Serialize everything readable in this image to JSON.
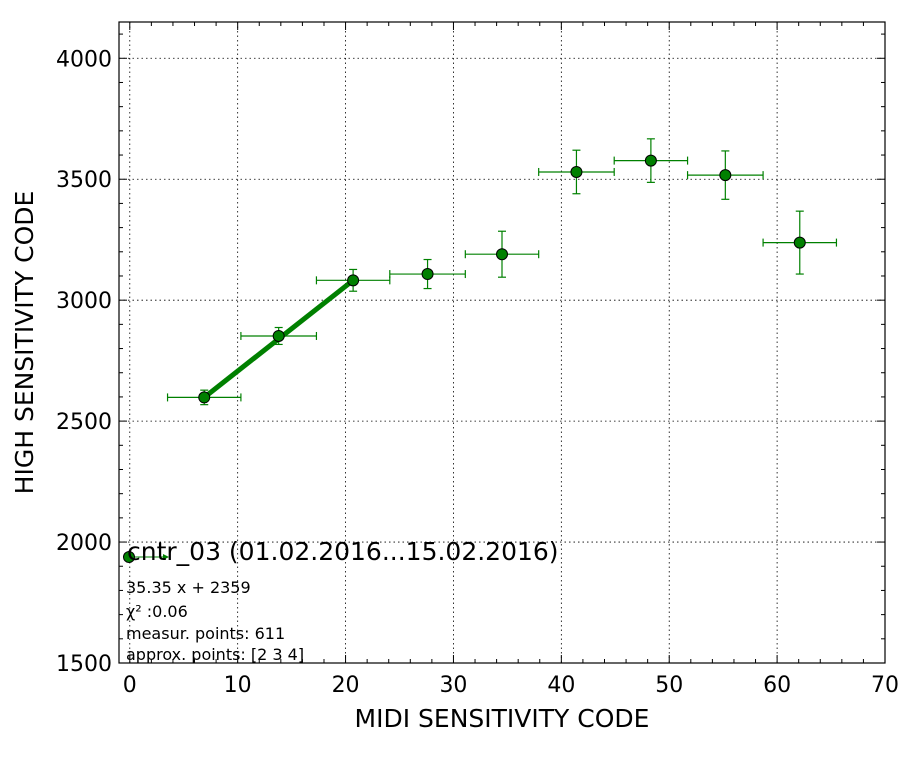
{
  "chart_data": {
    "type": "scatter",
    "xlabel": "MIDI SENSITIVITY CODE",
    "ylabel": "HIGH SENSITIVITY CODE",
    "xlim": [
      -1,
      70
    ],
    "ylim": [
      1500,
      4150
    ],
    "x_ticks": [
      0,
      10,
      20,
      30,
      40,
      50,
      60,
      70
    ],
    "y_ticks": [
      1500,
      2000,
      2500,
      3000,
      3500,
      4000
    ],
    "x_tick_labels": [
      "0",
      "10",
      "20",
      "30",
      "40",
      "50",
      "60",
      "70"
    ],
    "y_tick_labels": [
      "1500",
      "2000",
      "2500",
      "3000",
      "3500",
      "4000"
    ],
    "grid": true,
    "color": "#008000",
    "series": [
      {
        "name": "cntr_03 (01.02.2016...15.02.2016)",
        "points": [
          {
            "x": 6.9,
            "y": 2598,
            "xerr": 3.4,
            "yerr": 30
          },
          {
            "x": 13.8,
            "y": 2852,
            "xerr": 3.5,
            "yerr": 35
          },
          {
            "x": 20.7,
            "y": 3082,
            "xerr": 3.4,
            "yerr": 45
          },
          {
            "x": 27.6,
            "y": 3108,
            "xerr": 3.5,
            "yerr": 60
          },
          {
            "x": 34.5,
            "y": 3190,
            "xerr": 3.4,
            "yerr": 95
          },
          {
            "x": 41.4,
            "y": 3530,
            "xerr": 3.5,
            "yerr": 90
          },
          {
            "x": 48.3,
            "y": 3577,
            "xerr": 3.4,
            "yerr": 90
          },
          {
            "x": 55.2,
            "y": 3517,
            "xerr": 3.5,
            "yerr": 100
          },
          {
            "x": 62.1,
            "y": 3238,
            "xerr": 3.4,
            "yerr": 130
          }
        ]
      }
    ],
    "fit_line": {
      "x": [
        6.9,
        20.7
      ],
      "y": [
        2598,
        3082
      ]
    },
    "legend": {
      "label": "cntr_03 (01.02.2016...15.02.2016)",
      "placement": "lower-left",
      "lines": [
        "35.35 x + 2359",
        "χ² :0.06",
        "measur. points: 611",
        "approx. points: [2 3 4]"
      ]
    }
  }
}
